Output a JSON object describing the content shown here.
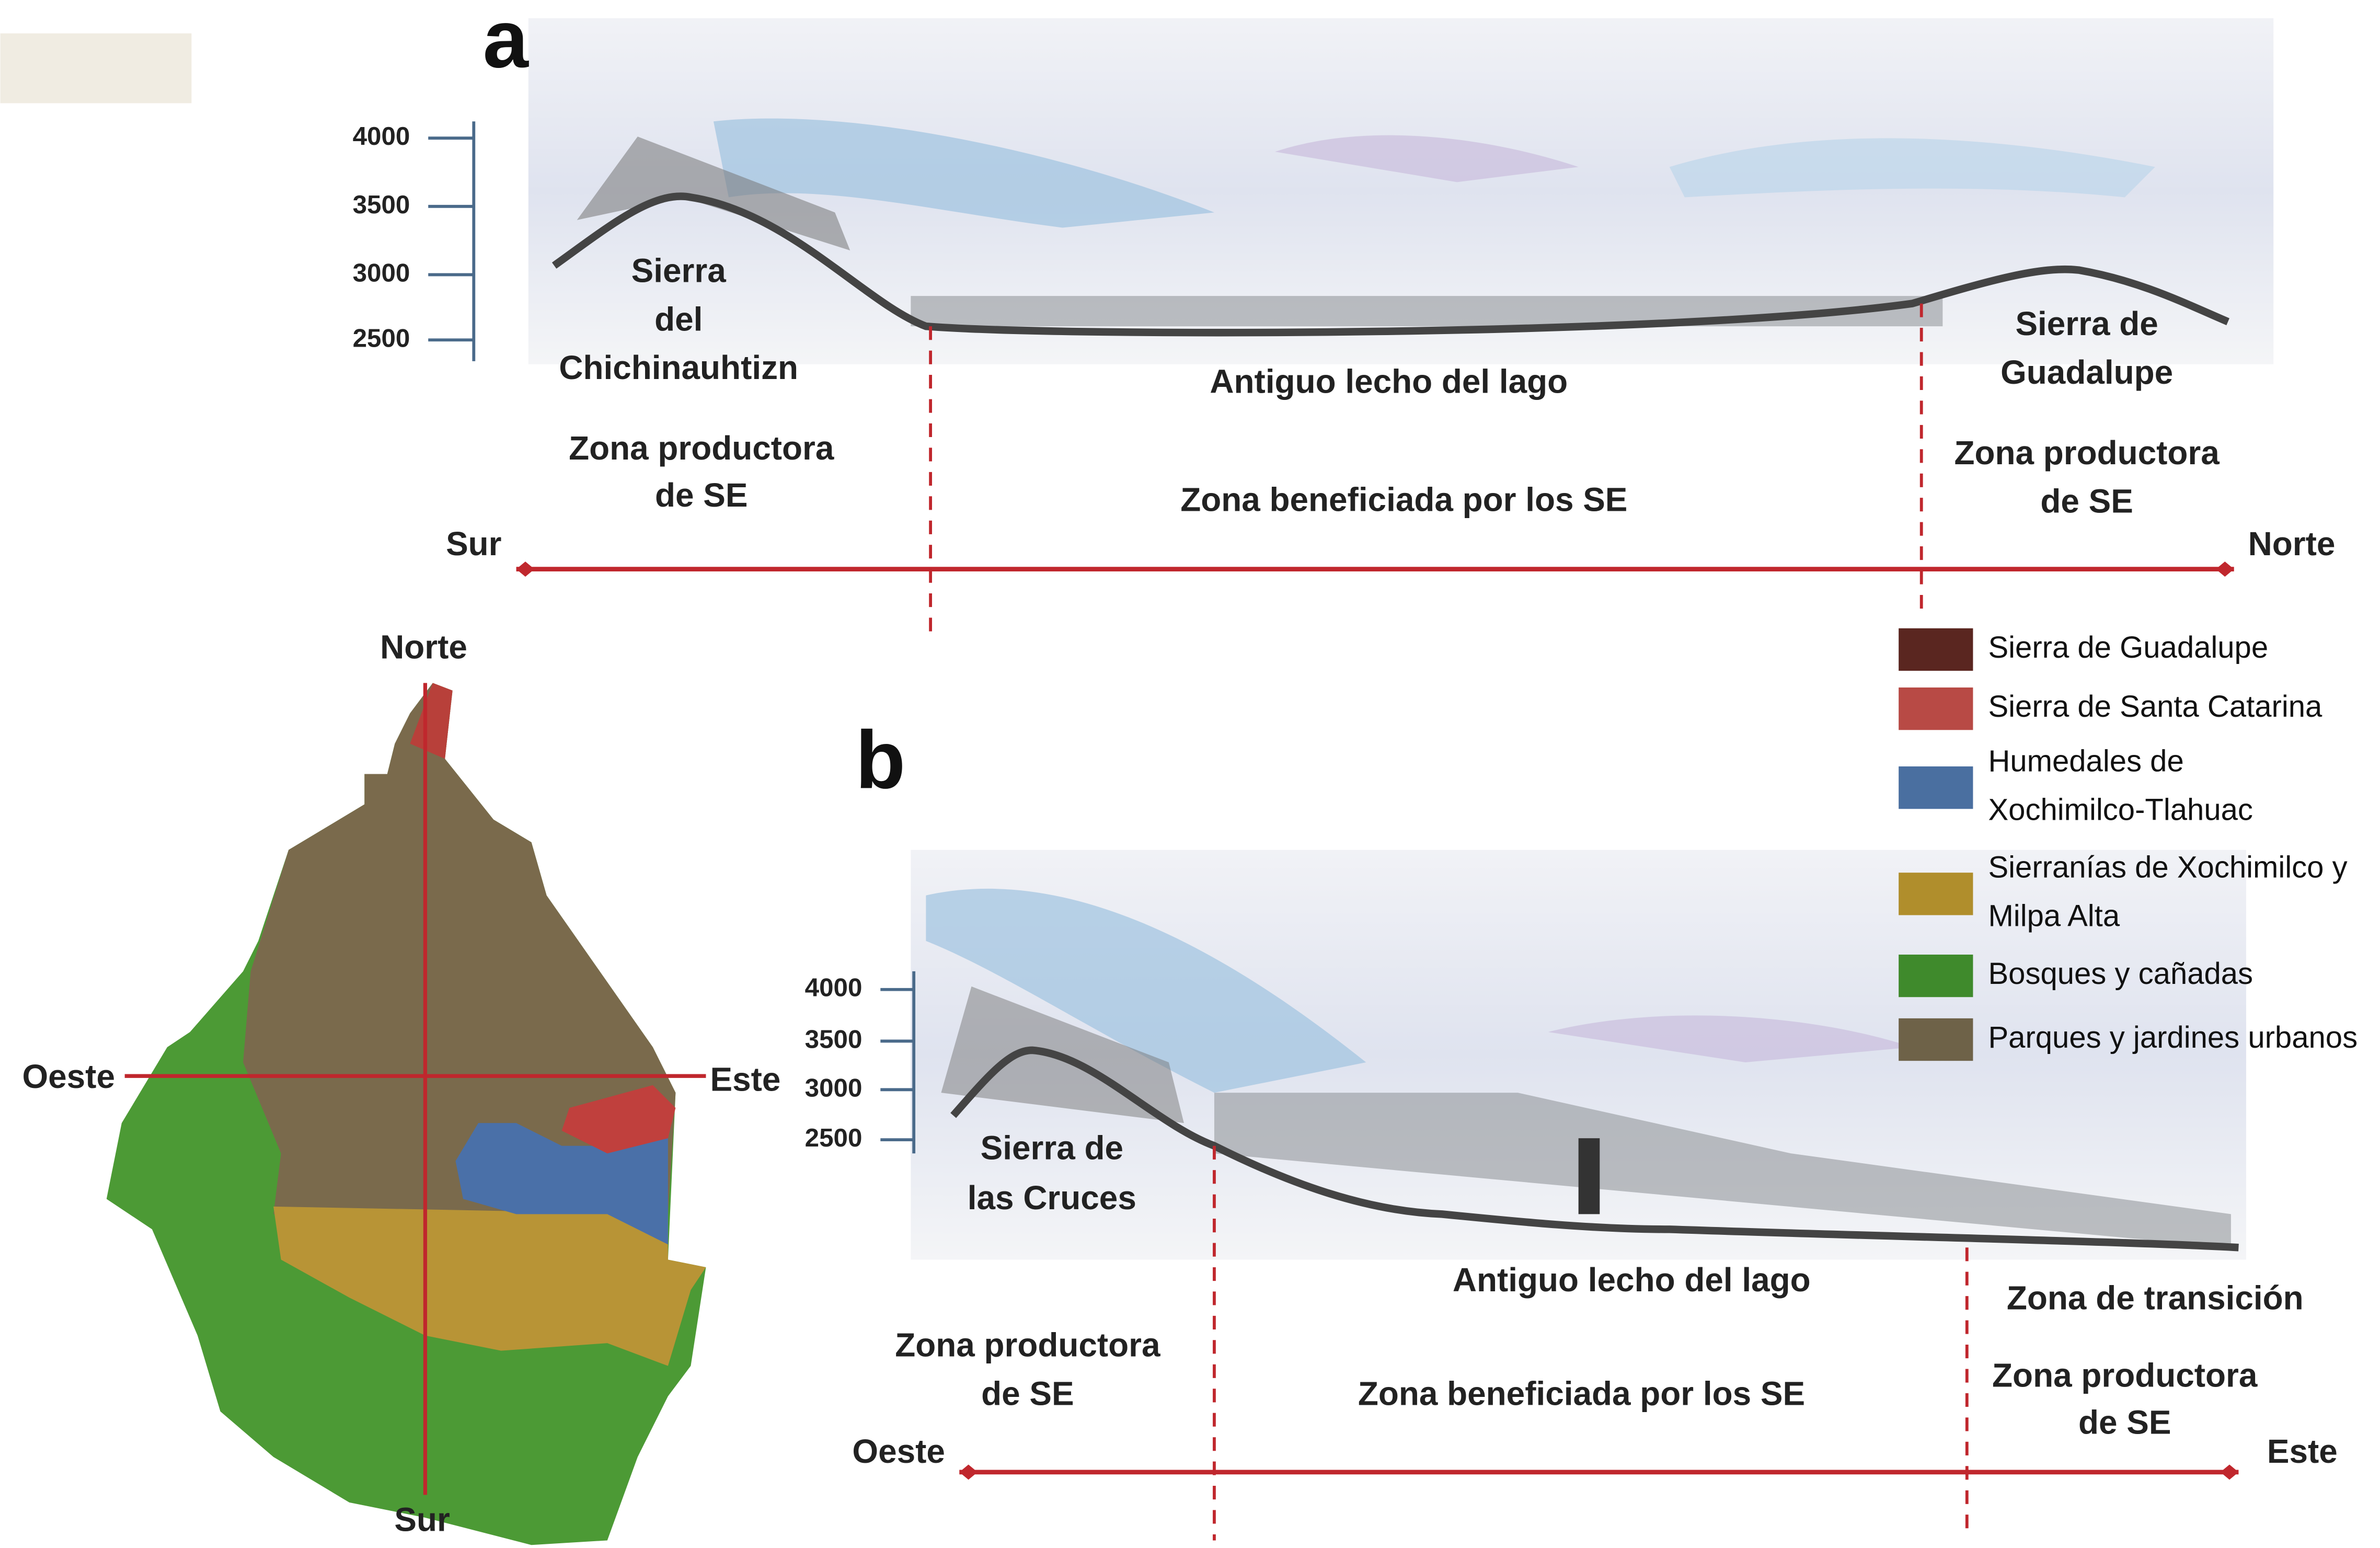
{
  "panel_a": {
    "letter": "a",
    "elevation_ticks": [
      "4000",
      "3500",
      "3000",
      "2500"
    ],
    "labels": {
      "sierra_left": [
        "Sierra",
        "del",
        "Chichinauhtizn"
      ],
      "lake": "Antiguo lecho del lago",
      "sierra_right": [
        "Sierra de",
        "Guadalupe"
      ],
      "zone_left": [
        "Zona productora",
        "de SE"
      ],
      "zone_center": "Zona beneficiada por los SE",
      "zone_right": [
        "Zona productora",
        "de SE"
      ]
    },
    "axis": {
      "start": "Sur",
      "end": "Norte"
    }
  },
  "panel_b": {
    "letter": "b",
    "elevation_ticks": [
      "4000",
      "3500",
      "3000",
      "2500"
    ],
    "labels": {
      "sierra_left": [
        "Sierra de",
        "las Cruces"
      ],
      "lake": "Antiguo lecho del lago",
      "transition": "Zona de transición",
      "zone_left": [
        "Zona productora",
        "de SE"
      ],
      "zone_center": "Zona beneficiada por los SE",
      "zone_right": [
        "Zona productora",
        "de SE"
      ]
    },
    "axis": {
      "start": "Oeste",
      "end": "Este"
    }
  },
  "map": {
    "north": "Norte",
    "west": "Oeste",
    "east": "Este",
    "south": "Sur"
  },
  "legend": [
    {
      "label": [
        "Sierra de Guadalupe"
      ],
      "color": "#5a2620"
    },
    {
      "label": [
        "Sierra de Santa Catarina"
      ],
      "color": "#b84a45"
    },
    {
      "label": [
        "Humedales de",
        "Xochimilco-Tlahuac"
      ],
      "color": "#4a6fa0"
    },
    {
      "label": [
        "Sierranías de Xochimilco y",
        "Milpa Alta"
      ],
      "color": "#b08e2c"
    },
    {
      "label": [
        "Bosques y cañadas"
      ],
      "color": "#3f8a2c"
    },
    {
      "label": [
        "Parques y jardines urbanos"
      ],
      "color": "#6e6248"
    }
  ]
}
